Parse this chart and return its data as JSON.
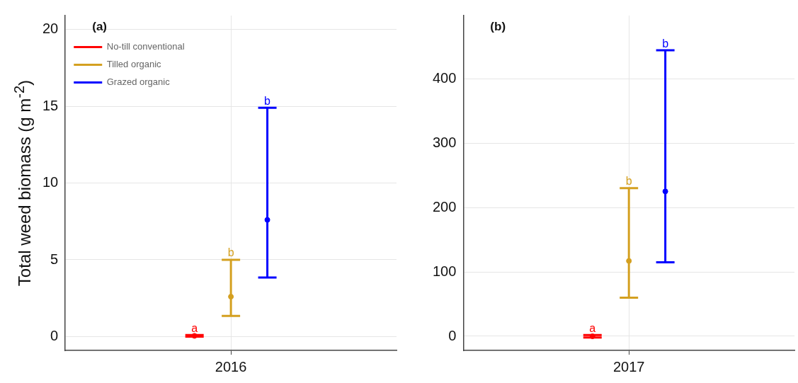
{
  "chart_data": [
    {
      "type": "scatter",
      "ylabel": "Total weed biomass (g m$^{-2}$)",
      "categories": [
        "2016"
      ],
      "ylim": [
        -0.9,
        20.9
      ],
      "yticks": [
        0,
        5,
        10,
        15,
        20
      ],
      "grid": true,
      "legend": "top left",
      "marker": "circle",
      "annotations": [
        "(a)",
        "a",
        "b",
        "b"
      ],
      "series": [
        {
          "name": "No-till conventional",
          "color": "#ff0000",
          "values": [
            0.05
          ],
          "errors": [
            [
              0.0,
              0.1
            ]
          ]
        },
        {
          "name": "Tilled organic",
          "color": "#d4a020",
          "values": [
            2.6
          ],
          "errors": [
            [
              1.35,
              5.0
            ]
          ]
        },
        {
          "name": "Grazed organic",
          "color": "#0000ff",
          "values": [
            7.6
          ],
          "errors": [
            [
              3.85,
              14.9
            ]
          ]
        }
      ]
    },
    {
      "type": "scatter",
      "categories": [
        "2017"
      ],
      "ylim": [
        -22,
        498
      ],
      "yticks": [
        0,
        100,
        200,
        300,
        400
      ],
      "grid": true,
      "marker": "circle",
      "annotations": [
        "(b)",
        "a",
        "b",
        "b"
      ],
      "series": [
        {
          "color": "#ff0000",
          "values": [
            0
          ],
          "errors": [
            [
              -2,
              2
            ]
          ]
        },
        {
          "color": "#d4a020",
          "values": [
            117
          ],
          "errors": [
            [
              60,
              230
            ]
          ]
        },
        {
          "color": "#0000ff",
          "values": [
            225
          ],
          "errors": [
            [
              115,
              444
            ]
          ]
        }
      ]
    }
  ]
}
